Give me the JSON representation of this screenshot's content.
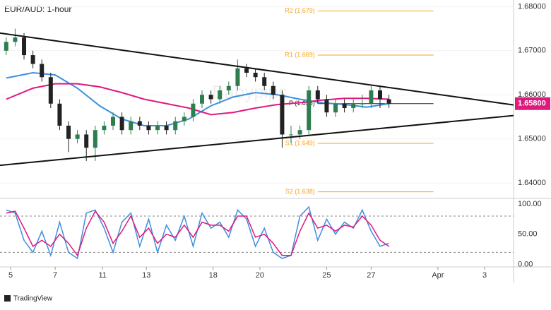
{
  "chart_data": [
    {
      "type": "candlestick",
      "title": "EUR/AUD: 1-hour",
      "watermark": "Babypips",
      "x": [
        -0.2,
        0.2,
        0.6,
        1.0,
        1.4,
        1.8,
        2.2,
        2.6,
        3.0,
        3.4,
        3.8,
        4.2,
        4.6,
        5.0,
        5.4,
        5.8,
        6.2,
        6.6,
        7.0,
        7.4,
        7.8,
        8.2,
        8.6,
        9.0,
        9.4,
        9.8,
        10.2,
        10.6,
        11.0,
        11.4,
        11.8,
        12.2,
        12.6,
        13.0,
        13.4,
        13.8,
        14.2,
        14.6,
        15.0,
        15.4,
        15.8,
        16.2,
        16.6,
        17.0
      ],
      "open": [
        1.67,
        1.672,
        1.673,
        1.669,
        1.667,
        1.664,
        1.658,
        1.653,
        1.65,
        1.651,
        1.648,
        1.652,
        1.653,
        1.655,
        1.652,
        1.654,
        1.653,
        1.652,
        1.653,
        1.652,
        1.654,
        1.655,
        1.658,
        1.66,
        1.659,
        1.661,
        1.662,
        1.666,
        1.665,
        1.664,
        1.662,
        1.66,
        1.651,
        1.651,
        1.652,
        1.661,
        1.659,
        1.656,
        1.658,
        1.657,
        1.658,
        1.658,
        1.661,
        1.659
      ],
      "high": [
        1.673,
        1.675,
        1.674,
        1.67,
        1.668,
        1.665,
        1.659,
        1.654,
        1.652,
        1.652,
        1.653,
        1.654,
        1.656,
        1.656,
        1.655,
        1.655,
        1.654,
        1.654,
        1.654,
        1.655,
        1.656,
        1.659,
        1.661,
        1.661,
        1.662,
        1.663,
        1.668,
        1.667,
        1.666,
        1.665,
        1.663,
        1.661,
        1.653,
        1.653,
        1.662,
        1.662,
        1.66,
        1.659,
        1.659,
        1.659,
        1.66,
        1.662,
        1.662,
        1.66
      ],
      "low": [
        1.669,
        1.671,
        1.668,
        1.666,
        1.663,
        1.657,
        1.652,
        1.647,
        1.649,
        1.645,
        1.645,
        1.651,
        1.652,
        1.651,
        1.651,
        1.652,
        1.651,
        1.651,
        1.651,
        1.651,
        1.653,
        1.654,
        1.657,
        1.658,
        1.658,
        1.66,
        1.661,
        1.664,
        1.663,
        1.661,
        1.659,
        1.648,
        1.649,
        1.65,
        1.651,
        1.658,
        1.655,
        1.655,
        1.656,
        1.656,
        1.657,
        1.657,
        1.657,
        1.657
      ],
      "close": [
        1.672,
        1.673,
        1.669,
        1.667,
        1.664,
        1.658,
        1.653,
        1.65,
        1.651,
        1.648,
        1.652,
        1.653,
        1.655,
        1.652,
        1.654,
        1.653,
        1.652,
        1.653,
        1.652,
        1.654,
        1.655,
        1.658,
        1.66,
        1.659,
        1.661,
        1.662,
        1.666,
        1.665,
        1.664,
        1.662,
        1.66,
        1.651,
        1.651,
        1.652,
        1.661,
        1.659,
        1.656,
        1.658,
        1.657,
        1.658,
        1.658,
        1.661,
        1.659,
        1.658
      ],
      "up_color": "#2e7d4f",
      "down_color": "#222222",
      "moving_averages": [
        {
          "color": "#3d8fe0",
          "x": [
            -0.2,
            1,
            2,
            3,
            4,
            5,
            6,
            7,
            8,
            9,
            10,
            11,
            12,
            13,
            14,
            15,
            16,
            17
          ],
          "values": [
            1.6638,
            1.665,
            1.6645,
            1.6615,
            1.6575,
            1.6545,
            1.653,
            1.653,
            1.6545,
            1.6575,
            1.6595,
            1.6605,
            1.66,
            1.659,
            1.6582,
            1.6578,
            1.6572,
            1.658
          ]
        },
        {
          "color": "#e0197d",
          "x": [
            -0.2,
            1,
            2,
            3,
            4,
            5,
            6,
            7,
            8,
            9,
            10,
            11,
            12,
            13,
            14,
            15,
            16,
            17
          ],
          "values": [
            1.659,
            1.6615,
            1.6625,
            1.6625,
            1.6618,
            1.6605,
            1.659,
            1.658,
            1.657,
            1.6555,
            1.656,
            1.657,
            1.6578,
            1.6582,
            1.6588,
            1.6592,
            1.6592,
            1.659
          ]
        }
      ],
      "trendlines": [
        {
          "x": [
            -0.48,
            22.6
          ],
          "y": [
            1.674,
            1.6577
          ]
        },
        {
          "x": [
            -0.48,
            22.6
          ],
          "y": [
            1.644,
            1.6553
          ]
        }
      ],
      "level_x": [
        13.8,
        19.0
      ],
      "levels": [
        {
          "label": "R2 (1.679)",
          "value": 1.679,
          "color": "#f7a21b"
        },
        {
          "label": "R1 (1.669)",
          "value": 1.669,
          "color": "#f7a21b"
        },
        {
          "label": "P (1.658)",
          "value": 1.658,
          "color": "#222222"
        },
        {
          "label": "S1 (1.649)",
          "value": 1.649,
          "color": "#f7a21b"
        },
        {
          "label": "S2 (1.638)",
          "value": 1.638,
          "color": "#f7a21b"
        }
      ],
      "last_price": {
        "value": 1.658,
        "label": "1.65800"
      },
      "last_price_color": "#e0197d",
      "xlim": [
        -0.48,
        22.6
      ],
      "xticks": [
        {
          "value": 0,
          "label": "5"
        },
        {
          "value": 2,
          "label": "7"
        },
        {
          "value": 4.13,
          "label": "11"
        },
        {
          "value": 6.1,
          "label": "13"
        },
        {
          "value": 9.1,
          "label": "18"
        },
        {
          "value": 11.2,
          "label": "20"
        },
        {
          "value": 14.2,
          "label": "25"
        },
        {
          "value": 16.2,
          "label": "27"
        },
        {
          "value": 19.2,
          "label": "Apr"
        },
        {
          "value": 21.3,
          "label": "3"
        }
      ],
      "ylim": [
        1.6365,
        1.6815
      ],
      "yticks": [
        {
          "value": 1.64,
          "label": "1.64000"
        },
        {
          "value": 1.65,
          "label": "1.65000"
        },
        {
          "value": 1.66,
          "label": "1.66000"
        },
        {
          "value": 1.67,
          "label": "1.67000"
        },
        {
          "value": 1.68,
          "label": "1.68000"
        }
      ]
    },
    {
      "type": "line",
      "xlim": [
        -0.48,
        22.6
      ],
      "ylim": [
        -4,
        108
      ],
      "yticks": [
        {
          "value": 0,
          "label": "0.00"
        },
        {
          "value": 50,
          "label": "50.00"
        },
        {
          "value": 100,
          "label": "100.00"
        }
      ],
      "bands": [
        20,
        80
      ],
      "x": [
        -0.2,
        0.2,
        0.6,
        1.0,
        1.4,
        1.8,
        2.2,
        2.6,
        3.0,
        3.4,
        3.8,
        4.2,
        4.6,
        5.0,
        5.4,
        5.8,
        6.2,
        6.6,
        7.0,
        7.4,
        7.8,
        8.2,
        8.6,
        9.0,
        9.4,
        9.8,
        10.2,
        10.6,
        11.0,
        11.4,
        11.8,
        12.2,
        12.6,
        13.0,
        13.4,
        13.8,
        14.2,
        14.6,
        15.0,
        15.4,
        15.8,
        16.2,
        16.6,
        17.0
      ],
      "series": [
        {
          "color": "#3d8fe0",
          "values": [
            90,
            85,
            40,
            20,
            55,
            15,
            70,
            20,
            10,
            85,
            90,
            60,
            20,
            70,
            85,
            30,
            75,
            20,
            65,
            40,
            80,
            30,
            85,
            60,
            70,
            45,
            90,
            75,
            30,
            60,
            20,
            10,
            15,
            80,
            95,
            40,
            75,
            50,
            70,
            60,
            90,
            55,
            30,
            35
          ]
        },
        {
          "color": "#e0197d",
          "values": [
            85,
            88,
            60,
            30,
            40,
            30,
            50,
            35,
            15,
            60,
            88,
            70,
            35,
            55,
            80,
            45,
            60,
            35,
            50,
            45,
            65,
            45,
            70,
            65,
            65,
            55,
            80,
            80,
            45,
            50,
            35,
            15,
            15,
            55,
            85,
            60,
            65,
            55,
            65,
            62,
            80,
            65,
            40,
            30
          ]
        }
      ]
    }
  ],
  "footer": "TradingView"
}
